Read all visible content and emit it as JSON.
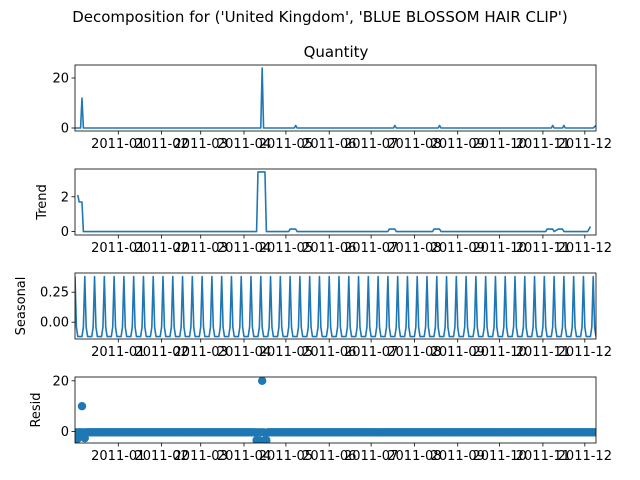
{
  "figure": {
    "suptitle": "Decomposition for ('United Kingdom', 'BLUE BLOSSOM HAIR CLIP')"
  },
  "colors": {
    "series": "#1f77b4"
  },
  "chart_data": [
    {
      "type": "line",
      "title": "Quantity",
      "ylabel": "",
      "xlim": [
        "2010-12-01",
        "2011-12-09"
      ],
      "ylim": [
        -1.2,
        25.2
      ],
      "yticks": [
        0,
        20
      ],
      "xticks": [
        "2011-01",
        "2011-02",
        "2011-03",
        "2011-04",
        "2011-05",
        "2011-06",
        "2011-07",
        "2011-08",
        "2011-09",
        "2011-10",
        "2011-11",
        "2011-12"
      ],
      "series": [
        {
          "x": [
            "2010-12-01",
            "2010-12-05",
            "2010-12-06",
            "2010-12-07",
            "2010-12-09",
            "2011-04-13",
            "2011-04-14",
            "2011-04-15",
            "2011-04-16",
            "2011-05-07",
            "2011-05-08",
            "2011-05-09",
            "2011-07-17",
            "2011-07-18",
            "2011-07-19",
            "2011-08-18",
            "2011-08-19",
            "2011-08-20",
            "2011-11-07",
            "2011-11-08",
            "2011-11-09",
            "2011-11-15",
            "2011-11-16",
            "2011-11-17",
            "2011-12-07",
            "2011-12-09"
          ],
          "y": [
            0,
            0,
            12,
            0,
            0,
            0,
            24,
            0,
            0,
            0,
            1,
            0,
            0,
            1,
            0,
            0,
            1,
            0,
            0,
            1,
            0,
            0,
            1,
            0,
            0,
            1
          ]
        }
      ]
    },
    {
      "type": "line",
      "ylabel": "Trend",
      "xlim": [
        "2010-12-01",
        "2011-12-09"
      ],
      "ylim": [
        -0.2,
        3.6
      ],
      "yticks": [
        0,
        2
      ],
      "xticks": [
        "2011-01",
        "2011-02",
        "2011-03",
        "2011-04",
        "2011-05",
        "2011-06",
        "2011-07",
        "2011-08",
        "2011-09",
        "2011-10",
        "2011-11",
        "2011-12"
      ],
      "series": [
        {
          "x": [
            "2010-12-03",
            "2010-12-04",
            "2010-12-06",
            "2010-12-07",
            "2010-12-09",
            "2011-04-10",
            "2011-04-11",
            "2011-04-16",
            "2011-04-17",
            "2011-05-03",
            "2011-05-04",
            "2011-05-08",
            "2011-05-09",
            "2011-07-13",
            "2011-07-14",
            "2011-07-18",
            "2011-07-19",
            "2011-08-14",
            "2011-08-15",
            "2011-08-19",
            "2011-08-20",
            "2011-11-03",
            "2011-11-04",
            "2011-11-08",
            "2011-11-09",
            "2011-11-12",
            "2011-11-13",
            "2011-11-15",
            "2011-11-16",
            "2011-12-03",
            "2011-12-04",
            "2011-12-05"
          ],
          "y": [
            2.1,
            1.7,
            1.7,
            0,
            0,
            0,
            3.43,
            3.43,
            0,
            0,
            0.14,
            0.14,
            0,
            0,
            0.14,
            0.14,
            0,
            0,
            0.14,
            0.14,
            0,
            0,
            0.14,
            0.14,
            0,
            0.14,
            0.14,
            0.14,
            0,
            0,
            0.14,
            0.29
          ]
        }
      ]
    },
    {
      "type": "line",
      "ylabel": "Seasonal",
      "xlim": [
        "2010-12-01",
        "2011-12-09"
      ],
      "ylim": [
        -0.14,
        0.41
      ],
      "yticks": [
        0.25,
        0.0
      ],
      "ytick_labels": [
        "0.25",
        "0.00"
      ],
      "xticks": [
        "2011-01",
        "2011-02",
        "2011-03",
        "2011-04",
        "2011-05",
        "2011-06",
        "2011-07",
        "2011-08",
        "2011-09",
        "2011-10",
        "2011-11",
        "2011-12"
      ],
      "seasonal_period_days": 7,
      "seasonal_pattern": [
        0.38,
        -0.04,
        -0.12,
        -0.12,
        -0.12,
        -0.12,
        -0.04
      ]
    },
    {
      "type": "scatter",
      "ylabel": "Resid",
      "xlim": [
        "2010-12-01",
        "2011-12-09"
      ],
      "ylim": [
        -4.5,
        21.5
      ],
      "yticks": [
        0,
        20
      ],
      "xticks": [
        "2011-01",
        "2011-02",
        "2011-03",
        "2011-04",
        "2011-05",
        "2011-06",
        "2011-07",
        "2011-08",
        "2011-09",
        "2011-10",
        "2011-11",
        "2011-12"
      ],
      "baseline_residual": -0.3,
      "outliers": [
        {
          "x": "2010-12-01",
          "y": -3.2
        },
        {
          "x": "2010-12-03",
          "y": -2.8
        },
        {
          "x": "2010-12-06",
          "y": 10.0
        },
        {
          "x": "2010-12-08",
          "y": -2.6
        },
        {
          "x": "2011-04-10",
          "y": -3.4
        },
        {
          "x": "2011-04-12",
          "y": -3.5
        },
        {
          "x": "2011-04-14",
          "y": 20.0
        },
        {
          "x": "2011-04-16",
          "y": -3.4
        },
        {
          "x": "2011-04-17",
          "y": -3.4
        }
      ]
    }
  ]
}
